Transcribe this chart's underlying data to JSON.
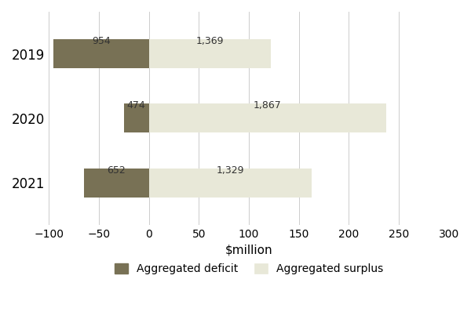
{
  "years": [
    "2019",
    "2020",
    "2021"
  ],
  "deficits": [
    -95.4,
    -25.0,
    -65.2
  ],
  "surpluses": [
    122.0,
    237.0,
    163.0
  ],
  "deficit_labels": [
    "954",
    "474",
    "652"
  ],
  "surplus_labels": [
    "1,369",
    "1,867",
    "1,329"
  ],
  "deficit_color": "#787155",
  "surplus_color": "#e8e8d8",
  "xlim": [
    -100,
    300
  ],
  "xticks": [
    -100,
    -50,
    0,
    50,
    100,
    150,
    200,
    250,
    300
  ],
  "xlabel": "$million",
  "legend_deficit": "Aggregated deficit",
  "legend_surplus": "Aggregated surplus",
  "bar_height": 0.45,
  "figsize": [
    6.0,
    4.07
  ],
  "dpi": 100
}
